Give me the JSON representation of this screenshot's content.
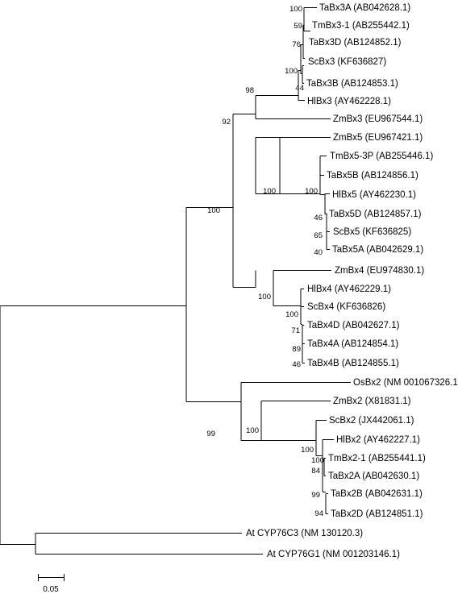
{
  "tree": {
    "leaves": [
      "TaBx3A (AB042628.1)",
      "TmBx3-1 (AB255442.1)",
      "TaBx3D (AB124852.1)",
      "ScBx3 (KF636827)",
      "TaBx3B (AB124853.1)",
      "HlBx3 (AY462228.1)",
      "ZmBx3 (EU967544.1)",
      "ZmBx5 (EU967421.1)",
      "TmBx5-3P (AB255446.1)",
      "TaBx5B (AB124856.1)",
      "HlBx5 (AY462230.1)",
      "TaBx5D (AB124857.1)",
      "ScBx5 (KF636825)",
      "TaBx5A (AB042629.1)",
      "ZmBx4 (EU974830.1)",
      "HlBx4 (AY462229.1)",
      "ScBx4 (KF636826)",
      "TaBx4D (AB042627.1)",
      "TaBx4A (AB124854.1)",
      "TaBx4B (AB124855.1)",
      "OsBx2 (NM 001067326.1)",
      "ZmBx2 (X81831.1)",
      "ScBx2 (JX442061.1)",
      "HlBx2 (AY462227.1)",
      "TmBx2-1 (AB255441.1)",
      "TaBx2A (AB042630.1)",
      "TaBx2B (AB042631.1)",
      "TaBx2D (AB124851.1)",
      "At CYP76C3 (NM 130120.3)",
      "At CYP76G1 (NM 001203146.1)"
    ],
    "bootstrap": [
      "100",
      "59",
      "76",
      "100",
      "44",
      "98",
      "92",
      "100",
      "100",
      "46",
      "65",
      "40",
      "100",
      "100",
      "100",
      "71",
      "89",
      "46",
      "99",
      "100",
      "100",
      "100",
      "84",
      "99",
      "94"
    ]
  },
  "scale_bar": {
    "label": "0.05"
  }
}
